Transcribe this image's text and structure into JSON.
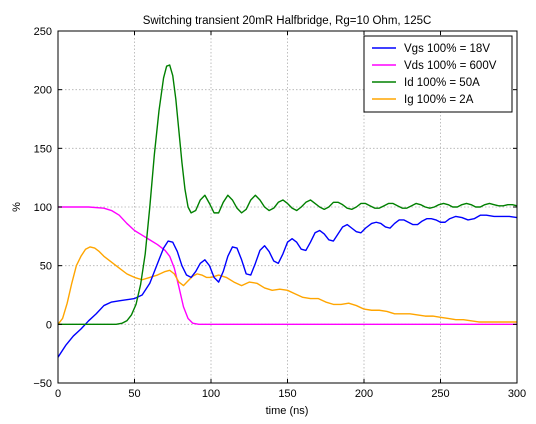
{
  "chart_data": {
    "type": "line",
    "title": "Switching transient 20mR Halfbridge, Rg=10 Ohm, 125C",
    "xlabel": "time (ns)",
    "ylabel": "%",
    "xlim": [
      0,
      300
    ],
    "ylim": [
      -50,
      250
    ],
    "x_ticks": [
      0,
      50,
      100,
      150,
      200,
      250,
      300
    ],
    "y_ticks": [
      -50,
      0,
      50,
      100,
      150,
      200,
      250
    ],
    "grid": true,
    "legend_position": "top-right",
    "series": [
      {
        "name": "Vgs 100% = 18V",
        "color": "#0000ff",
        "points": [
          [
            0,
            -28
          ],
          [
            5,
            -18
          ],
          [
            10,
            -10
          ],
          [
            15,
            -4
          ],
          [
            20,
            3
          ],
          [
            25,
            9
          ],
          [
            30,
            16
          ],
          [
            35,
            19
          ],
          [
            40,
            20
          ],
          [
            45,
            21
          ],
          [
            50,
            22
          ],
          [
            55,
            25
          ],
          [
            60,
            35
          ],
          [
            63,
            45
          ],
          [
            66,
            55
          ],
          [
            69,
            65
          ],
          [
            72,
            71
          ],
          [
            75,
            70
          ],
          [
            78,
            62
          ],
          [
            81,
            50
          ],
          [
            84,
            42
          ],
          [
            87,
            40
          ],
          [
            90,
            45
          ],
          [
            93,
            52
          ],
          [
            96,
            55
          ],
          [
            99,
            50
          ],
          [
            102,
            40
          ],
          [
            105,
            36
          ],
          [
            108,
            45
          ],
          [
            111,
            58
          ],
          [
            114,
            66
          ],
          [
            117,
            65
          ],
          [
            120,
            55
          ],
          [
            123,
            43
          ],
          [
            126,
            42
          ],
          [
            129,
            52
          ],
          [
            132,
            63
          ],
          [
            135,
            67
          ],
          [
            138,
            62
          ],
          [
            141,
            54
          ],
          [
            144,
            52
          ],
          [
            147,
            60
          ],
          [
            150,
            70
          ],
          [
            153,
            73
          ],
          [
            156,
            70
          ],
          [
            159,
            64
          ],
          [
            162,
            63
          ],
          [
            165,
            70
          ],
          [
            168,
            78
          ],
          [
            171,
            80
          ],
          [
            174,
            77
          ],
          [
            177,
            72
          ],
          [
            180,
            71
          ],
          [
            183,
            77
          ],
          [
            186,
            83
          ],
          [
            189,
            85
          ],
          [
            192,
            82
          ],
          [
            195,
            79
          ],
          [
            198,
            78
          ],
          [
            201,
            82
          ],
          [
            205,
            86
          ],
          [
            208,
            87
          ],
          [
            211,
            86
          ],
          [
            214,
            83
          ],
          [
            217,
            82
          ],
          [
            220,
            86
          ],
          [
            223,
            89
          ],
          [
            226,
            89
          ],
          [
            229,
            87
          ],
          [
            232,
            85
          ],
          [
            235,
            85
          ],
          [
            238,
            88
          ],
          [
            241,
            90
          ],
          [
            244,
            90
          ],
          [
            247,
            89
          ],
          [
            250,
            87
          ],
          [
            253,
            87
          ],
          [
            256,
            90
          ],
          [
            260,
            92
          ],
          [
            264,
            91
          ],
          [
            268,
            89
          ],
          [
            272,
            90
          ],
          [
            276,
            93
          ],
          [
            280,
            93
          ],
          [
            285,
            92
          ],
          [
            290,
            92
          ],
          [
            295,
            92
          ],
          [
            300,
            91
          ]
        ]
      },
      {
        "name": "Vds 100% = 600V",
        "color": "#ff00ff",
        "points": [
          [
            0,
            100
          ],
          [
            10,
            100
          ],
          [
            20,
            100
          ],
          [
            30,
            99
          ],
          [
            35,
            97
          ],
          [
            40,
            93
          ],
          [
            45,
            86
          ],
          [
            50,
            80
          ],
          [
            55,
            76
          ],
          [
            60,
            72
          ],
          [
            65,
            68
          ],
          [
            70,
            63
          ],
          [
            73,
            58
          ],
          [
            76,
            48
          ],
          [
            79,
            32
          ],
          [
            82,
            15
          ],
          [
            85,
            5
          ],
          [
            88,
            1
          ],
          [
            92,
            0
          ],
          [
            100,
            0
          ],
          [
            150,
            0
          ],
          [
            200,
            0
          ],
          [
            250,
            0
          ],
          [
            300,
            0
          ]
        ]
      },
      {
        "name": "Id 100% = 50A",
        "color": "#008000",
        "points": [
          [
            0,
            0
          ],
          [
            20,
            0
          ],
          [
            30,
            0
          ],
          [
            38,
            0
          ],
          [
            42,
            1
          ],
          [
            45,
            3
          ],
          [
            48,
            8
          ],
          [
            51,
            17
          ],
          [
            54,
            34
          ],
          [
            57,
            60
          ],
          [
            60,
            100
          ],
          [
            63,
            145
          ],
          [
            66,
            182
          ],
          [
            69,
            210
          ],
          [
            71,
            220
          ],
          [
            73,
            221
          ],
          [
            75,
            212
          ],
          [
            77,
            192
          ],
          [
            79,
            165
          ],
          [
            81,
            138
          ],
          [
            83,
            115
          ],
          [
            85,
            100
          ],
          [
            87,
            95
          ],
          [
            90,
            97
          ],
          [
            93,
            106
          ],
          [
            96,
            110
          ],
          [
            99,
            103
          ],
          [
            102,
            95
          ],
          [
            105,
            95
          ],
          [
            108,
            104
          ],
          [
            111,
            110
          ],
          [
            114,
            106
          ],
          [
            117,
            99
          ],
          [
            120,
            95
          ],
          [
            123,
            98
          ],
          [
            126,
            106
          ],
          [
            129,
            110
          ],
          [
            132,
            106
          ],
          [
            135,
            100
          ],
          [
            138,
            97
          ],
          [
            141,
            99
          ],
          [
            144,
            104
          ],
          [
            147,
            106
          ],
          [
            150,
            103
          ],
          [
            153,
            99
          ],
          [
            156,
            97
          ],
          [
            159,
            100
          ],
          [
            162,
            104
          ],
          [
            165,
            106
          ],
          [
            168,
            103
          ],
          [
            171,
            100
          ],
          [
            174,
            98
          ],
          [
            177,
            100
          ],
          [
            180,
            104
          ],
          [
            183,
            104
          ],
          [
            186,
            102
          ],
          [
            189,
            99
          ],
          [
            192,
            98
          ],
          [
            195,
            100
          ],
          [
            198,
            103
          ],
          [
            201,
            103
          ],
          [
            204,
            101
          ],
          [
            207,
            99
          ],
          [
            210,
            99
          ],
          [
            213,
            101
          ],
          [
            216,
            103
          ],
          [
            219,
            103
          ],
          [
            222,
            101
          ],
          [
            225,
            99
          ],
          [
            228,
            99
          ],
          [
            231,
            101
          ],
          [
            234,
            103
          ],
          [
            237,
            102
          ],
          [
            240,
            100
          ],
          [
            243,
            99
          ],
          [
            246,
            100
          ],
          [
            249,
            102
          ],
          [
            252,
            103
          ],
          [
            255,
            102
          ],
          [
            258,
            100
          ],
          [
            261,
            100
          ],
          [
            264,
            102
          ],
          [
            267,
            103
          ],
          [
            270,
            102
          ],
          [
            273,
            100
          ],
          [
            276,
            100
          ],
          [
            279,
            102
          ],
          [
            282,
            103
          ],
          [
            285,
            102
          ],
          [
            288,
            101
          ],
          [
            291,
            101
          ],
          [
            294,
            102
          ],
          [
            297,
            102
          ],
          [
            300,
            101
          ]
        ]
      },
      {
        "name": "Ig 100% = 2A",
        "color": "#ffa500",
        "points": [
          [
            0,
            0
          ],
          [
            3,
            5
          ],
          [
            6,
            18
          ],
          [
            9,
            35
          ],
          [
            12,
            50
          ],
          [
            15,
            58
          ],
          [
            18,
            64
          ],
          [
            21,
            66
          ],
          [
            24,
            65
          ],
          [
            27,
            62
          ],
          [
            30,
            58
          ],
          [
            35,
            53
          ],
          [
            40,
            48
          ],
          [
            45,
            43
          ],
          [
            50,
            40
          ],
          [
            55,
            38
          ],
          [
            60,
            40
          ],
          [
            65,
            42
          ],
          [
            70,
            45
          ],
          [
            73,
            46
          ],
          [
            76,
            43
          ],
          [
            79,
            36
          ],
          [
            82,
            33
          ],
          [
            85,
            37
          ],
          [
            88,
            41
          ],
          [
            91,
            43
          ],
          [
            94,
            42
          ],
          [
            97,
            40
          ],
          [
            100,
            40
          ],
          [
            105,
            42
          ],
          [
            110,
            40
          ],
          [
            115,
            36
          ],
          [
            120,
            33
          ],
          [
            125,
            36
          ],
          [
            130,
            35
          ],
          [
            135,
            31
          ],
          [
            140,
            29
          ],
          [
            145,
            30
          ],
          [
            150,
            29
          ],
          [
            155,
            26
          ],
          [
            160,
            23
          ],
          [
            165,
            22
          ],
          [
            170,
            22
          ],
          [
            175,
            19
          ],
          [
            180,
            17
          ],
          [
            185,
            17
          ],
          [
            190,
            18
          ],
          [
            195,
            16
          ],
          [
            200,
            13
          ],
          [
            205,
            12
          ],
          [
            210,
            12
          ],
          [
            215,
            11
          ],
          [
            220,
            9
          ],
          [
            225,
            9
          ],
          [
            230,
            9
          ],
          [
            235,
            8
          ],
          [
            240,
            7
          ],
          [
            245,
            7
          ],
          [
            250,
            6
          ],
          [
            255,
            5
          ],
          [
            260,
            4
          ],
          [
            265,
            4
          ],
          [
            270,
            3
          ],
          [
            275,
            2
          ],
          [
            280,
            2
          ],
          [
            285,
            2
          ],
          [
            290,
            2
          ],
          [
            295,
            2
          ],
          [
            300,
            2
          ]
        ]
      }
    ]
  }
}
